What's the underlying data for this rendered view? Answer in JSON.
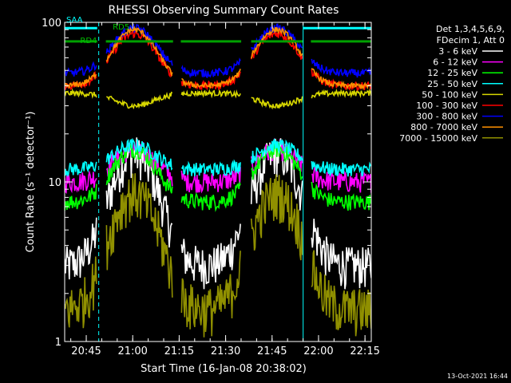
{
  "chart_data": {
    "type": "line",
    "title": "RHESSI Observing Summary Count Rates",
    "xlabel": "Start Time (16-Jan-08 20:38:02)",
    "ylabel": "Count Rate (s⁻¹ detector⁻¹)",
    "yscale": "log",
    "ylim": [
      1,
      100
    ],
    "xlim_minutes": [
      0,
      99
    ],
    "x_ticks": [
      "20:45",
      "21:00",
      "21:15",
      "21:30",
      "21:45",
      "22:00",
      "22:15"
    ],
    "x_tick_minutes": [
      6.97,
      21.97,
      36.97,
      51.97,
      66.97,
      81.97,
      96.97
    ],
    "y_ticks": [
      "1",
      "10",
      "100"
    ],
    "y_tick_values": [
      1,
      10,
      100
    ],
    "legend_header": [
      "Det 1,3,4,5,6,9,",
      "FDecim 1, Att 0"
    ],
    "legend_position": "right",
    "annotations": [
      {
        "text": "RD5",
        "x_minute": 15.5,
        "y": 90,
        "color": "#00c000"
      },
      {
        "text": "SAA",
        "x_minute": 0.5,
        "y": 100,
        "color": "#00ffff"
      },
      {
        "text": "RD4",
        "x_minute": 5,
        "y": 74,
        "color": "#00c000"
      }
    ],
    "vertical_markers": [
      {
        "x_minute": 11.0,
        "style": "dashed",
        "color": "#00ffff"
      },
      {
        "x_minute": 77.0,
        "style": "solid",
        "color": "#00ffff"
      },
      {
        "x_minute": 99.0,
        "style": "dashed",
        "color": "#00ffff"
      }
    ],
    "gaps_minutes": [
      [
        10.5,
        13.3
      ],
      [
        35.0,
        37.5
      ],
      [
        57.0,
        60.2
      ],
      [
        77.0,
        79.5
      ]
    ],
    "series": [
      {
        "name": "3 - 6 keV",
        "color": "#ffffff",
        "base": 3,
        "peak": 15,
        "noise": 0.3
      },
      {
        "name": "6 - 12 keV",
        "color": "#ff00ff",
        "base": 10,
        "peak": 16,
        "noise": 0.15
      },
      {
        "name": "12 - 25 keV",
        "color": "#00ff00",
        "base": 7.5,
        "peak": 16,
        "noise": 0.12
      },
      {
        "name": "25 - 50 keV",
        "color": "#00ffff",
        "base": 12,
        "peak": 17,
        "noise": 0.1
      },
      {
        "name": "50 - 100 keV",
        "color": "#d8d800",
        "base": 36,
        "peak": 30,
        "noise": 0.04
      },
      {
        "name": "100 - 300 keV",
        "color": "#ff0000",
        "base": 40,
        "peak": 85,
        "noise": 0.06
      },
      {
        "name": "300 - 800 keV",
        "color": "#0000ff",
        "base": 48,
        "peak": 92,
        "noise": 0.06
      },
      {
        "name": "800 - 7000 keV",
        "color": "#ff9000",
        "base": 40,
        "peak": 90,
        "noise": 0.04
      },
      {
        "name": "7000 - 15000 keV",
        "color": "#909000",
        "base": 1.6,
        "peak": 8.5,
        "noise": 0.35
      }
    ],
    "flags": [
      {
        "name": "RD4/RD5",
        "color": "#00a000",
        "y": 76
      },
      {
        "name": "SAA",
        "color": "#00ffff",
        "y": 92
      }
    ]
  },
  "timestamp": "13-Oct-2021 16:44"
}
